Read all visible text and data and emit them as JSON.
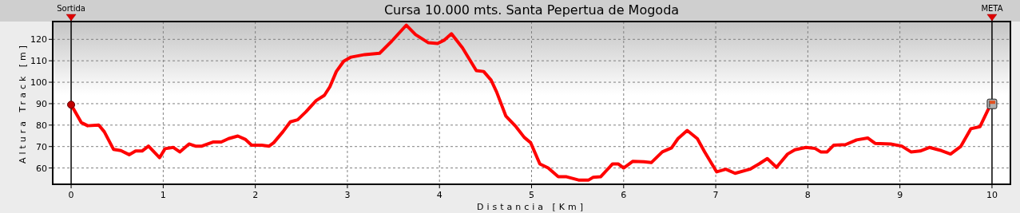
{
  "chart_data": {
    "type": "line",
    "title": "Cursa 10.000 mts. Santa Pepertua de Mogoda",
    "xlabel": "Distancia [Km]",
    "ylabel": "Altura Track [m]",
    "x": [
      0,
      0.11,
      0.18,
      0.3,
      0.36,
      0.46,
      0.54,
      0.63,
      0.7,
      0.77,
      0.84,
      0.96,
      1.02,
      1.11,
      1.18,
      1.28,
      1.35,
      1.42,
      1.54,
      1.63,
      1.71,
      1.81,
      1.89,
      1.96,
      2.07,
      2.15,
      2.2,
      2.3,
      2.38,
      2.46,
      2.55,
      2.66,
      2.75,
      2.81,
      2.88,
      2.96,
      3.04,
      3.19,
      3.35,
      3.48,
      3.64,
      3.74,
      3.88,
      3.98,
      4.05,
      4.13,
      4.25,
      4.4,
      4.48,
      4.56,
      4.62,
      4.72,
      4.83,
      4.92,
      4.99,
      5.09,
      5.18,
      5.29,
      5.38,
      5.51,
      5.62,
      5.67,
      5.75,
      5.88,
      5.94,
      6.0,
      6.1,
      6.22,
      6.3,
      6.42,
      6.52,
      6.59,
      6.69,
      6.8,
      6.88,
      7.01,
      7.11,
      7.21,
      7.37,
      7.47,
      7.56,
      7.66,
      7.78,
      7.86,
      7.98,
      8.08,
      8.14,
      8.21,
      8.28,
      8.41,
      8.53,
      8.65,
      8.73,
      8.9,
      9.02,
      9.12,
      9.22,
      9.32,
      9.45,
      9.55,
      9.66,
      9.77,
      9.87,
      9.96,
      10.0
    ],
    "series": [
      {
        "color": "#ff0000",
        "values": [
          89.5,
          81.2,
          79.7,
          80,
          76.9,
          68.7,
          68.1,
          66.2,
          67.9,
          67.9,
          70.2,
          64.8,
          69,
          69.6,
          67.5,
          71.2,
          70.2,
          70.2,
          72.1,
          72.1,
          73.7,
          74.9,
          73.4,
          70.6,
          70.6,
          70.2,
          71.8,
          76.9,
          81.5,
          82.5,
          86.2,
          91.4,
          93.9,
          97.9,
          105,
          109.8,
          111.7,
          112.9,
          113.5,
          119.1,
          126.6,
          122.2,
          118.4,
          118.1,
          119.6,
          122.6,
          116,
          105.4,
          105,
          101,
          95.5,
          84.3,
          79.3,
          74.3,
          71.8,
          61.9,
          60,
          55.9,
          55.9,
          54.4,
          54.4,
          55.7,
          55.9,
          61.9,
          61.9,
          60,
          63.1,
          62.9,
          62.5,
          67.5,
          69.4,
          73.7,
          77.5,
          73.7,
          67.5,
          58.2,
          59.4,
          57.5,
          59.4,
          61.9,
          64.4,
          60.3,
          66.5,
          68.5,
          69.6,
          69.1,
          67.5,
          67.5,
          70.6,
          70.9,
          73.1,
          74,
          71.5,
          71.2,
          70.2,
          67.5,
          67.9,
          69.6,
          68.1,
          66.5,
          70,
          78.3,
          79.3,
          87.4,
          89.9
        ]
      }
    ],
    "xlim": [
      -0.2,
      10.2
    ],
    "ylim": [
      52.4,
      128.3
    ],
    "xticks": [
      0,
      1,
      2,
      3,
      4,
      5,
      6,
      7,
      8,
      9,
      10
    ],
    "yticks": [
      60,
      70,
      80,
      90,
      100,
      110,
      120
    ],
    "grid": true,
    "line_style": "solid",
    "ref_lines": [
      {
        "axis": "x",
        "value": 0,
        "label": "Sortida",
        "color": "#000000"
      },
      {
        "axis": "x",
        "value": 10,
        "label": "META",
        "color": "#000000"
      }
    ]
  }
}
